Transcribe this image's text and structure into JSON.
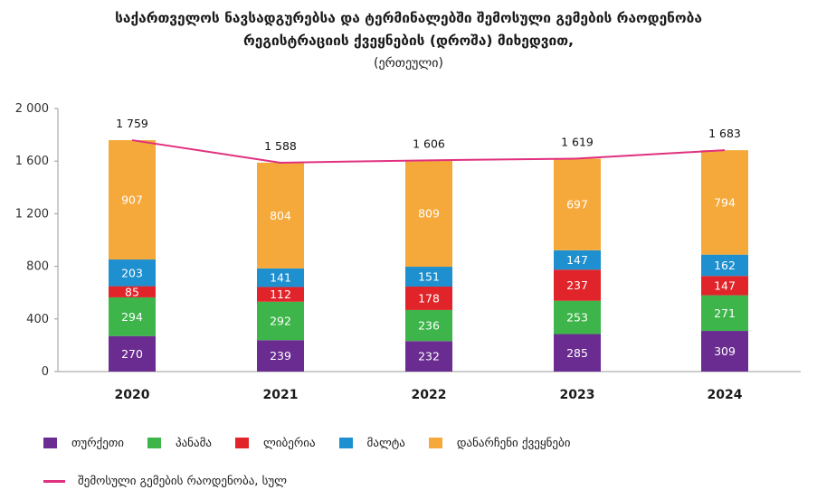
{
  "title_line1": "საქართველოს ნავსადგურებსა და ტერმინალებში შემოსული გემების რაოდენობა",
  "title_line2": "რეგისტრაციის ქვეყნების (დროშა) მიხედვით,",
  "subtitle": "(ერთეული)",
  "colors": {
    "turkey": "#6a2c91",
    "panama": "#3db54a",
    "liberia": "#e0242a",
    "malta": "#1e8fcf",
    "other": "#f6a93b",
    "total_line": "#e0307f",
    "axis": "#9a9a9a",
    "grid": "#c8c8c8"
  },
  "legend": {
    "turkey": "თურქეთი",
    "panama": "პანამა",
    "liberia": "ლიბერია",
    "malta": "მალტა",
    "other": "დანარჩენი ქვეყნები",
    "total": "შემოსული გემების რაოდენობა, სულ"
  },
  "chart_data": {
    "type": "bar",
    "stacked": true,
    "categories": [
      "2020",
      "2021",
      "2022",
      "2023",
      "2024"
    ],
    "series": [
      {
        "name": "თურქეთი",
        "key": "turkey",
        "values": [
          270,
          239,
          232,
          285,
          309
        ]
      },
      {
        "name": "პანამა",
        "key": "panama",
        "values": [
          294,
          292,
          236,
          253,
          271
        ]
      },
      {
        "name": "ლიბერია",
        "key": "liberia",
        "values": [
          85,
          112,
          178,
          237,
          147
        ]
      },
      {
        "name": "მალტა",
        "key": "malta",
        "values": [
          203,
          141,
          151,
          147,
          162
        ]
      },
      {
        "name": "დანარჩენი ქვეყნები",
        "key": "other",
        "values": [
          907,
          804,
          809,
          697,
          794
        ]
      }
    ],
    "line": {
      "name": "შემოსული გემების რაოდენობა, სულ",
      "values": [
        1759,
        1588,
        1606,
        1619,
        1683
      ]
    },
    "total_labels": [
      "1 759",
      "1 588",
      "1 606",
      "1 619",
      "1 683"
    ],
    "y_ticks": [
      0,
      400,
      800,
      1200,
      1600,
      2000
    ],
    "y_tick_labels": [
      "0",
      "400",
      "800",
      "1 200",
      "1 600",
      "2 000"
    ],
    "ylim": [
      0,
      2000
    ],
    "grid": false,
    "legend_position": "bottom"
  }
}
